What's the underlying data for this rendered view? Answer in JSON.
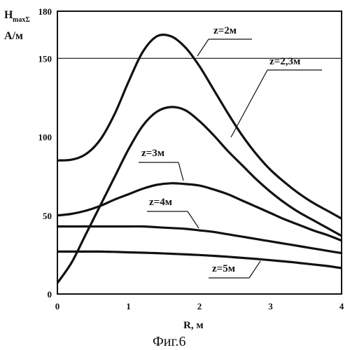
{
  "chart_data": {
    "type": "line",
    "xlabel": "R,  м",
    "ylabel_main": "H",
    "ylabel_sub": "maxΣ",
    "ylabel_unit": "А/м",
    "caption": "Фиг.6",
    "xlim": [
      0,
      4
    ],
    "ylim": [
      0,
      180
    ],
    "x_ticks": [
      0,
      1,
      2,
      3,
      4
    ],
    "y_ticks": [
      0,
      50,
      100,
      150,
      180
    ],
    "grid": "horizontal at 150 only",
    "series": [
      {
        "name": "z=2м",
        "x": [
          0,
          0.2,
          0.4,
          0.6,
          0.8,
          1.0,
          1.2,
          1.4,
          1.6,
          1.8,
          2.0,
          2.2,
          2.4,
          2.6,
          2.8,
          3.0,
          3.2,
          3.4,
          3.6,
          3.8,
          4.0
        ],
        "y": [
          85,
          85.5,
          89,
          98,
          114,
          135,
          154,
          164,
          164,
          157,
          145,
          130,
          115,
          101,
          89,
          79,
          71,
          64,
          58,
          53,
          48
        ]
      },
      {
        "name": "z=2,3м",
        "x": [
          0,
          0.2,
          0.4,
          0.6,
          0.8,
          1.0,
          1.2,
          1.4,
          1.6,
          1.8,
          2.0,
          2.2,
          2.4,
          2.6,
          2.8,
          3.0,
          3.2,
          3.4,
          3.6,
          3.8,
          4.0
        ],
        "y": [
          7,
          20,
          38,
          56,
          74,
          92,
          107,
          116,
          119,
          117,
          110,
          101,
          91,
          82,
          73,
          65,
          58,
          52,
          47,
          42,
          37
        ]
      },
      {
        "name": "z=3м",
        "x": [
          0,
          0.2,
          0.4,
          0.6,
          0.8,
          1.0,
          1.2,
          1.4,
          1.6,
          1.8,
          2.0,
          2.2,
          2.4,
          2.6,
          2.8,
          3.0,
          3.2,
          3.4,
          3.6,
          3.8,
          4.0
        ],
        "y": [
          50,
          51,
          53,
          56,
          60,
          63.5,
          67,
          69.5,
          70.5,
          70,
          69,
          66.5,
          63.5,
          59.5,
          55.5,
          51.5,
          47.5,
          44,
          40.5,
          37.5,
          34
        ]
      },
      {
        "name": "z=4м",
        "x": [
          0,
          0.2,
          0.4,
          0.6,
          0.8,
          1.0,
          1.2,
          1.4,
          1.6,
          1.8,
          2.0,
          2.2,
          2.4,
          2.6,
          2.8,
          3.0,
          3.2,
          3.4,
          3.6,
          3.8,
          4.0
        ],
        "y": [
          43,
          43,
          43,
          43,
          43,
          43,
          43,
          42.5,
          42,
          41.5,
          40.5,
          39.5,
          38,
          36.5,
          35,
          33.5,
          32,
          30.5,
          29,
          27.5,
          26
        ]
      },
      {
        "name": "z=5м",
        "x": [
          0,
          0.2,
          0.4,
          0.6,
          0.8,
          1.0,
          1.2,
          1.4,
          1.6,
          1.8,
          2.0,
          2.2,
          2.4,
          2.6,
          2.8,
          3.0,
          3.2,
          3.4,
          3.6,
          3.8,
          4.0
        ],
        "y": [
          27,
          27,
          27,
          27,
          26.8,
          26.5,
          26.3,
          26,
          25.6,
          25.2,
          24.8,
          24.3,
          23.7,
          23,
          22.3,
          21.5,
          20.7,
          19.8,
          18.8,
          17.8,
          16.5
        ]
      }
    ],
    "labels": [
      {
        "text": "z=2м",
        "series": 0
      },
      {
        "text": "z=2,3м",
        "series": 1
      },
      {
        "text": "z=3м",
        "series": 2
      },
      {
        "text": "z=4м",
        "series": 3
      },
      {
        "text": "z=5м",
        "series": 4
      }
    ]
  }
}
